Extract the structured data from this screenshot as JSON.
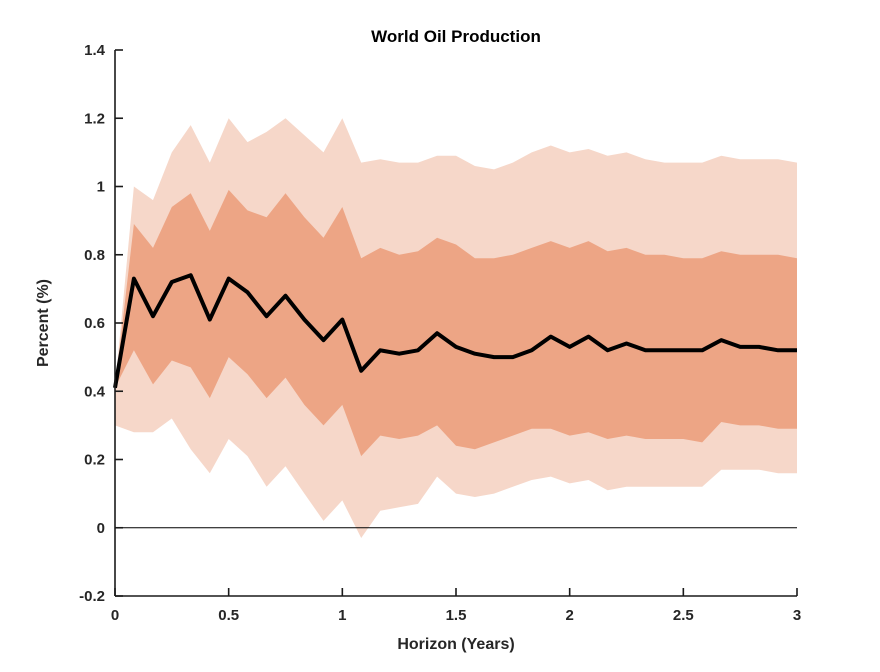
{
  "figure": {
    "title": "World Oil Production",
    "x_axis_label": "Horizon (Years)",
    "y_axis_label": "Percent (%)"
  },
  "style": {
    "outer_band_color": "#f6d7c9",
    "inner_band_color": "#eda585",
    "line_color": "#000000",
    "axis_color": "#1a1a1a",
    "text_color": "#262626",
    "background": "#ffffff"
  },
  "chart_data": {
    "type": "area",
    "title": "World Oil Production",
    "xlabel": "Horizon (Years)",
    "ylabel": "Percent (%)",
    "xlim": [
      0,
      3
    ],
    "ylim": [
      -0.2,
      1.4
    ],
    "grid": false,
    "zero_line": true,
    "legend": "none",
    "x_ticks": [
      0,
      0.5,
      1,
      1.5,
      2,
      2.5,
      3
    ],
    "x_tick_labels": [
      "0",
      "0.5",
      "1",
      "1.5",
      "2",
      "2.5",
      "3"
    ],
    "y_ticks": [
      -0.2,
      0,
      0.2,
      0.4,
      0.6,
      0.8,
      1,
      1.2,
      1.4
    ],
    "y_tick_labels": [
      "-0.2",
      "0",
      "0.2",
      "0.4",
      "0.6",
      "0.8",
      "1",
      "1.2",
      "1.4"
    ],
    "x": [
      0,
      0.083,
      0.167,
      0.25,
      0.333,
      0.417,
      0.5,
      0.583,
      0.667,
      0.75,
      0.833,
      0.917,
      1,
      1.083,
      1.167,
      1.25,
      1.333,
      1.417,
      1.5,
      1.583,
      1.667,
      1.75,
      1.833,
      1.917,
      2,
      2.083,
      2.167,
      2.25,
      2.333,
      2.417,
      2.5,
      2.583,
      2.667,
      2.75,
      2.833,
      2.917,
      3
    ],
    "line": {
      "name": "point-estimate",
      "color": "#000000",
      "width": 4,
      "values": [
        0.41,
        0.73,
        0.62,
        0.72,
        0.74,
        0.61,
        0.73,
        0.69,
        0.62,
        0.68,
        0.61,
        0.55,
        0.61,
        0.46,
        0.52,
        0.51,
        0.52,
        0.57,
        0.53,
        0.51,
        0.5,
        0.5,
        0.52,
        0.56,
        0.53,
        0.56,
        0.52,
        0.54,
        0.52,
        0.52,
        0.52,
        0.52,
        0.55,
        0.53,
        0.53,
        0.52,
        0.52
      ]
    },
    "bands": [
      {
        "name": "outer",
        "color": "#f6d7c9",
        "upper": [
          0.41,
          1.0,
          0.96,
          1.1,
          1.18,
          1.07,
          1.2,
          1.13,
          1.16,
          1.2,
          1.15,
          1.1,
          1.2,
          1.07,
          1.08,
          1.07,
          1.07,
          1.09,
          1.09,
          1.06,
          1.05,
          1.07,
          1.1,
          1.12,
          1.1,
          1.11,
          1.09,
          1.1,
          1.08,
          1.07,
          1.07,
          1.07,
          1.09,
          1.08,
          1.08,
          1.08,
          1.07
        ],
        "lower": [
          0.3,
          0.28,
          0.28,
          0.32,
          0.23,
          0.16,
          0.26,
          0.21,
          0.12,
          0.18,
          0.1,
          0.02,
          0.08,
          -0.03,
          0.05,
          0.06,
          0.07,
          0.15,
          0.1,
          0.09,
          0.1,
          0.12,
          0.14,
          0.15,
          0.13,
          0.14,
          0.11,
          0.12,
          0.12,
          0.12,
          0.12,
          0.12,
          0.17,
          0.17,
          0.17,
          0.16,
          0.16
        ]
      },
      {
        "name": "inner",
        "color": "#eda585",
        "upper": [
          0.41,
          0.89,
          0.82,
          0.94,
          0.98,
          0.87,
          0.99,
          0.93,
          0.91,
          0.98,
          0.91,
          0.85,
          0.94,
          0.79,
          0.82,
          0.8,
          0.81,
          0.85,
          0.83,
          0.79,
          0.79,
          0.8,
          0.82,
          0.84,
          0.82,
          0.84,
          0.81,
          0.82,
          0.8,
          0.8,
          0.79,
          0.79,
          0.81,
          0.8,
          0.8,
          0.8,
          0.79
        ],
        "lower": [
          0.41,
          0.52,
          0.42,
          0.49,
          0.47,
          0.38,
          0.5,
          0.45,
          0.38,
          0.44,
          0.36,
          0.3,
          0.36,
          0.21,
          0.27,
          0.26,
          0.27,
          0.3,
          0.24,
          0.23,
          0.25,
          0.27,
          0.29,
          0.29,
          0.27,
          0.28,
          0.26,
          0.27,
          0.26,
          0.26,
          0.26,
          0.25,
          0.31,
          0.3,
          0.3,
          0.29,
          0.29
        ]
      }
    ]
  }
}
